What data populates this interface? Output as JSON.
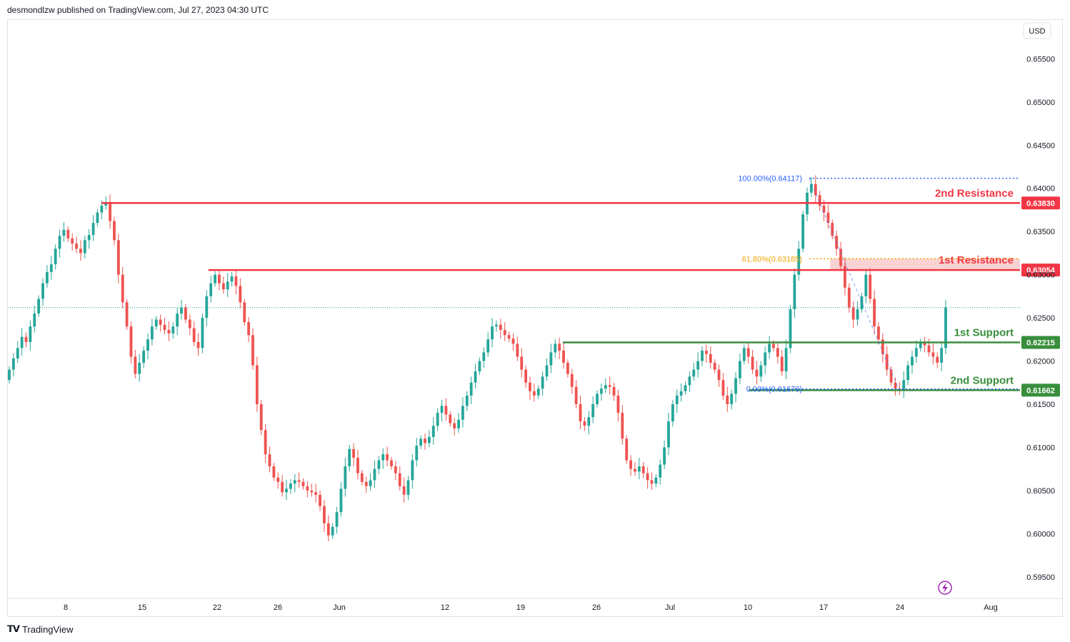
{
  "header": {
    "text": "desmondlzw published on TradingView.com, Jul 27, 2023 04:30 UTC"
  },
  "footer": {
    "brand": "TradingView",
    "logo": "tradingview-logo-icon"
  },
  "currency_label": "USD",
  "colors": {
    "up": "#26a69a",
    "down": "#ef5350",
    "resistance": "#f23645",
    "support": "#388e3c",
    "fib100": "#2962ff",
    "fib618": "#f0a500",
    "zone": "#f8c8c8",
    "grid": "#eef0f4",
    "text": "#131722",
    "lightning": "#9c27b0"
  },
  "chart_data": {
    "type": "candlestick",
    "instrument_quote": "USD",
    "ylim": [
      0.5925,
      0.6595
    ],
    "y_ticks": [
      "0.65500",
      "0.65000",
      "0.64500",
      "0.64000",
      "0.63500",
      "0.63000",
      "0.62500",
      "0.62000",
      "0.61500",
      "0.61000",
      "0.60500",
      "0.60000",
      "0.59500"
    ],
    "x_ticks": [
      "8",
      "15",
      "22",
      "26",
      "Jun",
      "12",
      "19",
      "26",
      "Jul",
      "10",
      "17",
      "24",
      "Aug"
    ],
    "levels": [
      {
        "label": "2nd Resistance",
        "value": "0.63830",
        "type": "resistance"
      },
      {
        "label": "1st Resistance",
        "value": "0.63054",
        "type": "resistance"
      },
      {
        "label": "1st Support",
        "value": "0.62215",
        "type": "support"
      },
      {
        "label": "2nd Support",
        "value": "0.61662",
        "type": "support"
      }
    ],
    "fib_labels": [
      {
        "label": "100.00%(0.64117)",
        "value": 0.64117
      },
      {
        "label": "61.80%(0.63185)",
        "value": 0.63185
      },
      {
        "label": "0.00%(0.61676)",
        "value": 0.61676
      }
    ],
    "last_price": 0.6262,
    "series_close": [
      0.619,
      0.6203,
      0.6215,
      0.6228,
      0.6222,
      0.624,
      0.6255,
      0.6272,
      0.629,
      0.6303,
      0.6312,
      0.633,
      0.6345,
      0.6352,
      0.6342,
      0.6336,
      0.633,
      0.6325,
      0.634,
      0.6346,
      0.636,
      0.6372,
      0.638,
      0.6383,
      0.6362,
      0.634,
      0.63,
      0.6268,
      0.624,
      0.6205,
      0.6185,
      0.6198,
      0.6212,
      0.6225,
      0.624,
      0.6248,
      0.6242,
      0.6236,
      0.6232,
      0.624,
      0.6255,
      0.6262,
      0.6248,
      0.6238,
      0.6222,
      0.6215,
      0.625,
      0.6275,
      0.629,
      0.63,
      0.629,
      0.6283,
      0.6292,
      0.6298,
      0.6287,
      0.6268,
      0.6245,
      0.623,
      0.6195,
      0.615,
      0.612,
      0.6092,
      0.6078,
      0.6065,
      0.606,
      0.6048,
      0.6052,
      0.6058,
      0.6062,
      0.606,
      0.6055,
      0.605,
      0.6048,
      0.6045,
      0.6032,
      0.6012,
      0.5998,
      0.6008,
      0.6025,
      0.6052,
      0.6078,
      0.6098,
      0.6088,
      0.607,
      0.606,
      0.6055,
      0.6062,
      0.6075,
      0.6085,
      0.6092,
      0.6085,
      0.6078,
      0.607,
      0.6055,
      0.6045,
      0.6062,
      0.6085,
      0.6102,
      0.611,
      0.6105,
      0.6112,
      0.6125,
      0.614,
      0.6148,
      0.6138,
      0.6128,
      0.6122,
      0.6132,
      0.6148,
      0.616,
      0.6175,
      0.6188,
      0.62,
      0.621,
      0.6225,
      0.624,
      0.6242,
      0.6236,
      0.623,
      0.6226,
      0.622,
      0.6205,
      0.619,
      0.6175,
      0.6165,
      0.616,
      0.6168,
      0.6182,
      0.6195,
      0.621,
      0.622,
      0.6212,
      0.6198,
      0.6185,
      0.617,
      0.615,
      0.613,
      0.6125,
      0.6135,
      0.615,
      0.6162,
      0.6168,
      0.6172,
      0.617,
      0.616,
      0.614,
      0.611,
      0.6085,
      0.6075,
      0.6072,
      0.6078,
      0.607,
      0.6062,
      0.6058,
      0.6065,
      0.608,
      0.61,
      0.613,
      0.615,
      0.616,
      0.6165,
      0.6172,
      0.6182,
      0.619,
      0.62,
      0.6212,
      0.6208,
      0.6198,
      0.619,
      0.6178,
      0.616,
      0.615,
      0.6162,
      0.618,
      0.62,
      0.6215,
      0.6205,
      0.619,
      0.6182,
      0.6195,
      0.621,
      0.622,
      0.6215,
      0.6205,
      0.6188,
      0.6215,
      0.626,
      0.63,
      0.633,
      0.637,
      0.6395,
      0.6405,
      0.6392,
      0.638,
      0.6372,
      0.636,
      0.6345,
      0.633,
      0.631,
      0.6285,
      0.6262,
      0.6248,
      0.626,
      0.6275,
      0.63,
      0.6272,
      0.624,
      0.6225,
      0.6208,
      0.619,
      0.6175,
      0.6168,
      0.6166,
      0.6178,
      0.6195,
      0.6205,
      0.6215,
      0.6222,
      0.6218,
      0.621,
      0.6205,
      0.6198,
      0.6215,
      0.6262
    ]
  }
}
